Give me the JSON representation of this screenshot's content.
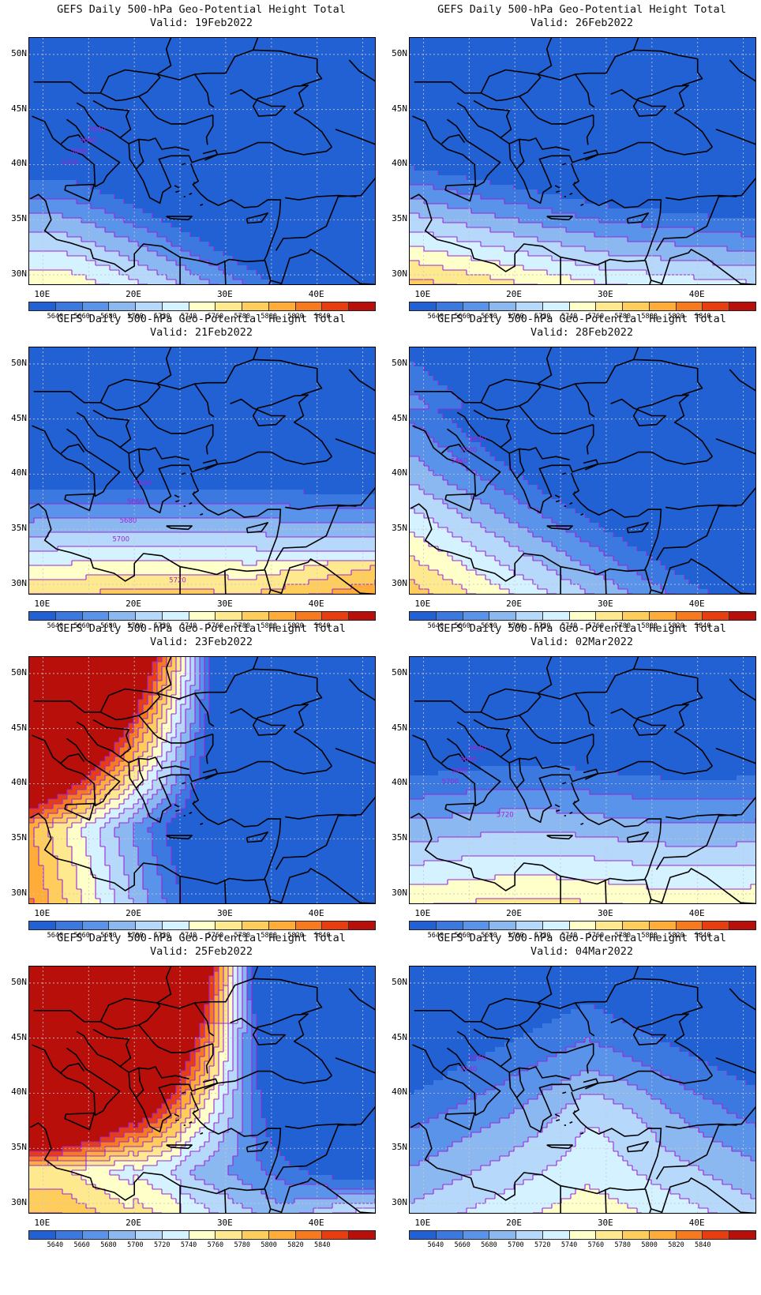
{
  "palette": {
    "colors": [
      "#2161d4",
      "#3b78e0",
      "#5a93ea",
      "#8cb8f2",
      "#b6d8fb",
      "#d4f2ff",
      "#ffffc9",
      "#ffe98f",
      "#ffcd5c",
      "#ffad38",
      "#f77a1e",
      "#e83d0f",
      "#b80f0a"
    ],
    "labels": [
      "5640",
      "5660",
      "5680",
      "5700",
      "5720",
      "5740",
      "5760",
      "5780",
      "5800",
      "5820",
      "5840"
    ],
    "contour_color": "#9c27d8",
    "coast_color": "#000000"
  },
  "axes": {
    "lat_labels": [
      "50N",
      "45N",
      "40N",
      "35N",
      "30N"
    ],
    "lon_labels": [
      "10E",
      "20E",
      "30E",
      "40E"
    ]
  },
  "map": {
    "title": "GEFS Daily 500-hPa Geo-Potential Height Total",
    "lon_range": [
      8.5,
      46.5
    ],
    "lat_range": [
      29,
      51.5
    ]
  },
  "panels": [
    {
      "title": "GEFS Daily 500-hPa Geo-Potential Height Total",
      "valid": "Valid: 19Feb2022",
      "contour_labels": [
        "5640",
        "5660",
        "5680",
        "5700"
      ]
    },
    {
      "title": "GEFS Daily 500-hPa Geo-Potential Height Total",
      "valid": "Valid: 26Feb2022",
      "contour_labels": []
    },
    {
      "title": "GEFS Daily 500-hPa Geo-Potential Height Total",
      "valid": "Valid: 21Feb2022",
      "contour_labels": [
        "5640",
        "5660",
        "5680",
        "5700",
        "5720",
        "5740",
        "5760",
        "5660"
      ]
    },
    {
      "title": "GEFS Daily 500-hPa Geo-Potential Height Total",
      "valid": "Valid: 28Feb2022",
      "contour_labels": [
        "5640",
        "5700",
        "5660"
      ]
    },
    {
      "title": "GEFS Daily 500-hPa Geo-Potential Height Total",
      "valid": "Valid: 23Feb2022",
      "contour_labels": []
    },
    {
      "title": "GEFS Daily 500-hPa Geo-Potential Height Total",
      "valid": "Valid: 02Mar2022",
      "contour_labels": [
        "5640",
        "5660",
        "5680",
        "5700",
        "5720"
      ]
    },
    {
      "title": "GEFS Daily 500-hPa Geo-Potential Height Total",
      "valid": "Valid: 25Feb2022",
      "contour_labels": []
    },
    {
      "title": "GEFS Daily 500-hPa Geo-Potential Height Total",
      "valid": "Valid: 04Mar2022",
      "contour_labels": [
        "5660",
        "5740"
      ]
    }
  ]
}
